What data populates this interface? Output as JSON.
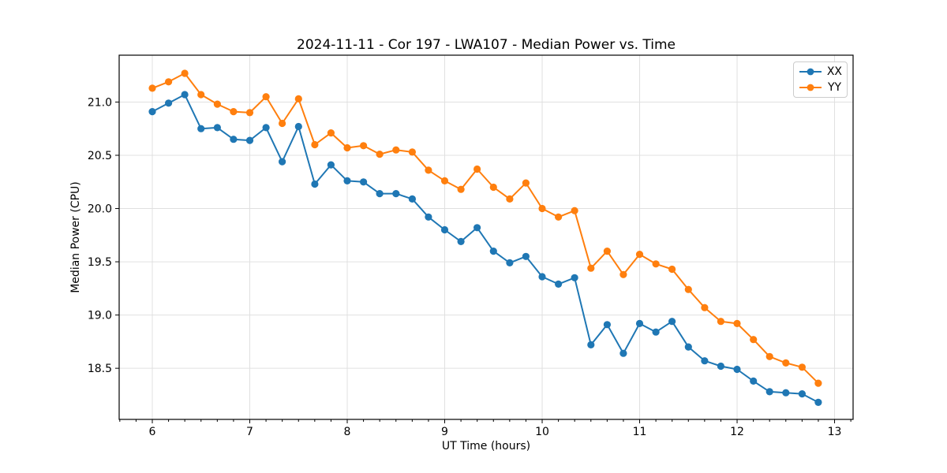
{
  "chart_data": {
    "type": "line",
    "title": "2024-11-11 - Cor 197 - LWA107 - Median Power vs. Time",
    "xlabel": "UT Time (hours)",
    "ylabel": "Median Power (CPU)",
    "xlim": [
      5.66,
      13.19
    ],
    "ylim": [
      18.02,
      21.44
    ],
    "xticks": [
      6,
      7,
      8,
      9,
      10,
      11,
      12,
      13
    ],
    "yticks": [
      18.5,
      19.0,
      19.5,
      20.0,
      20.5,
      21.0
    ],
    "ytick_labels": [
      "18.5",
      "19.0",
      "19.5",
      "20.0",
      "20.5",
      "21.0"
    ],
    "x_minor_tick_interval_hours": 0.1667,
    "grid": true,
    "legend_position": "upper right",
    "background_color": "#ffffff",
    "grid_color": "#e0e0e0",
    "x": [
      6.0,
      6.167,
      6.333,
      6.5,
      6.667,
      6.833,
      7.0,
      7.167,
      7.333,
      7.5,
      7.667,
      7.833,
      8.0,
      8.167,
      8.333,
      8.5,
      8.667,
      8.833,
      9.0,
      9.167,
      9.333,
      9.5,
      9.667,
      9.833,
      10.0,
      10.167,
      10.333,
      10.5,
      10.667,
      10.833,
      11.0,
      11.167,
      11.333,
      11.5,
      11.667,
      11.833,
      12.0,
      12.167,
      12.333,
      12.5,
      12.667,
      12.833
    ],
    "series": [
      {
        "name": "XX",
        "color": "#1f77b4",
        "values": [
          20.91,
          20.99,
          21.07,
          20.75,
          20.76,
          20.65,
          20.64,
          20.76,
          20.44,
          20.77,
          20.23,
          20.41,
          20.26,
          20.25,
          20.14,
          20.14,
          20.09,
          19.92,
          19.8,
          19.69,
          19.82,
          19.6,
          19.49,
          19.55,
          19.36,
          19.29,
          19.35,
          18.72,
          18.91,
          18.64,
          18.92,
          18.84,
          18.94,
          18.7,
          18.57,
          18.52,
          18.49,
          18.38,
          18.28,
          18.27,
          18.26,
          18.18
        ]
      },
      {
        "name": "YY",
        "color": "#ff7f0e",
        "values": [
          21.13,
          21.19,
          21.27,
          21.07,
          20.98,
          20.91,
          20.9,
          21.05,
          20.8,
          21.03,
          20.6,
          20.71,
          20.57,
          20.59,
          20.51,
          20.55,
          20.53,
          20.36,
          20.26,
          20.18,
          20.37,
          20.2,
          20.09,
          20.24,
          20.0,
          19.92,
          19.98,
          19.44,
          19.6,
          19.38,
          19.57,
          19.48,
          19.43,
          19.24,
          19.07,
          18.94,
          18.92,
          18.77,
          18.61,
          18.55,
          18.51,
          18.36
        ]
      }
    ]
  }
}
